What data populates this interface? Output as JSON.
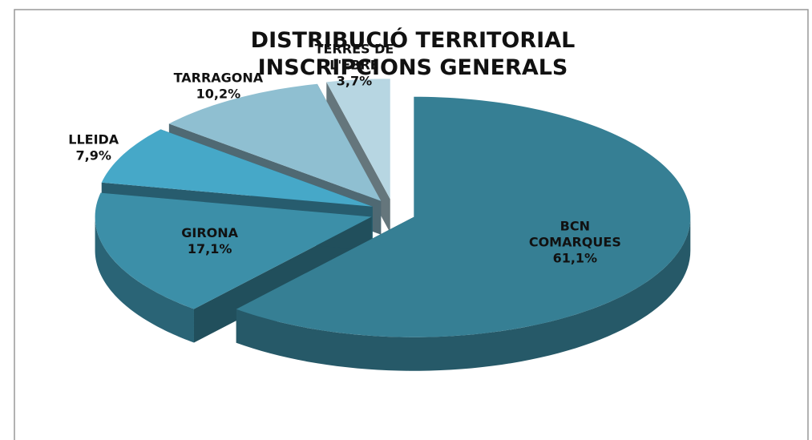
{
  "chart_data": {
    "type": "pie",
    "title": "DISTRIBUCIÓ TERRITORIAL\nINSCRIPCIONS GENERALS",
    "categories": [
      "BCN\nCOMARQUES",
      "GIRONA",
      "LLEIDA",
      "TARRAGONA",
      "TERRES DE\nL'EBRE"
    ],
    "values": [
      61.1,
      17.1,
      7.9,
      10.2,
      3.7
    ],
    "value_labels": [
      "61,1%",
      "17,1%",
      "7,9%",
      "10,2%",
      "3,7%"
    ],
    "colors": [
      "#367f94",
      "#3c8fa8",
      "#46a8c8",
      "#8fbfd1",
      "#b7d6e2"
    ]
  }
}
